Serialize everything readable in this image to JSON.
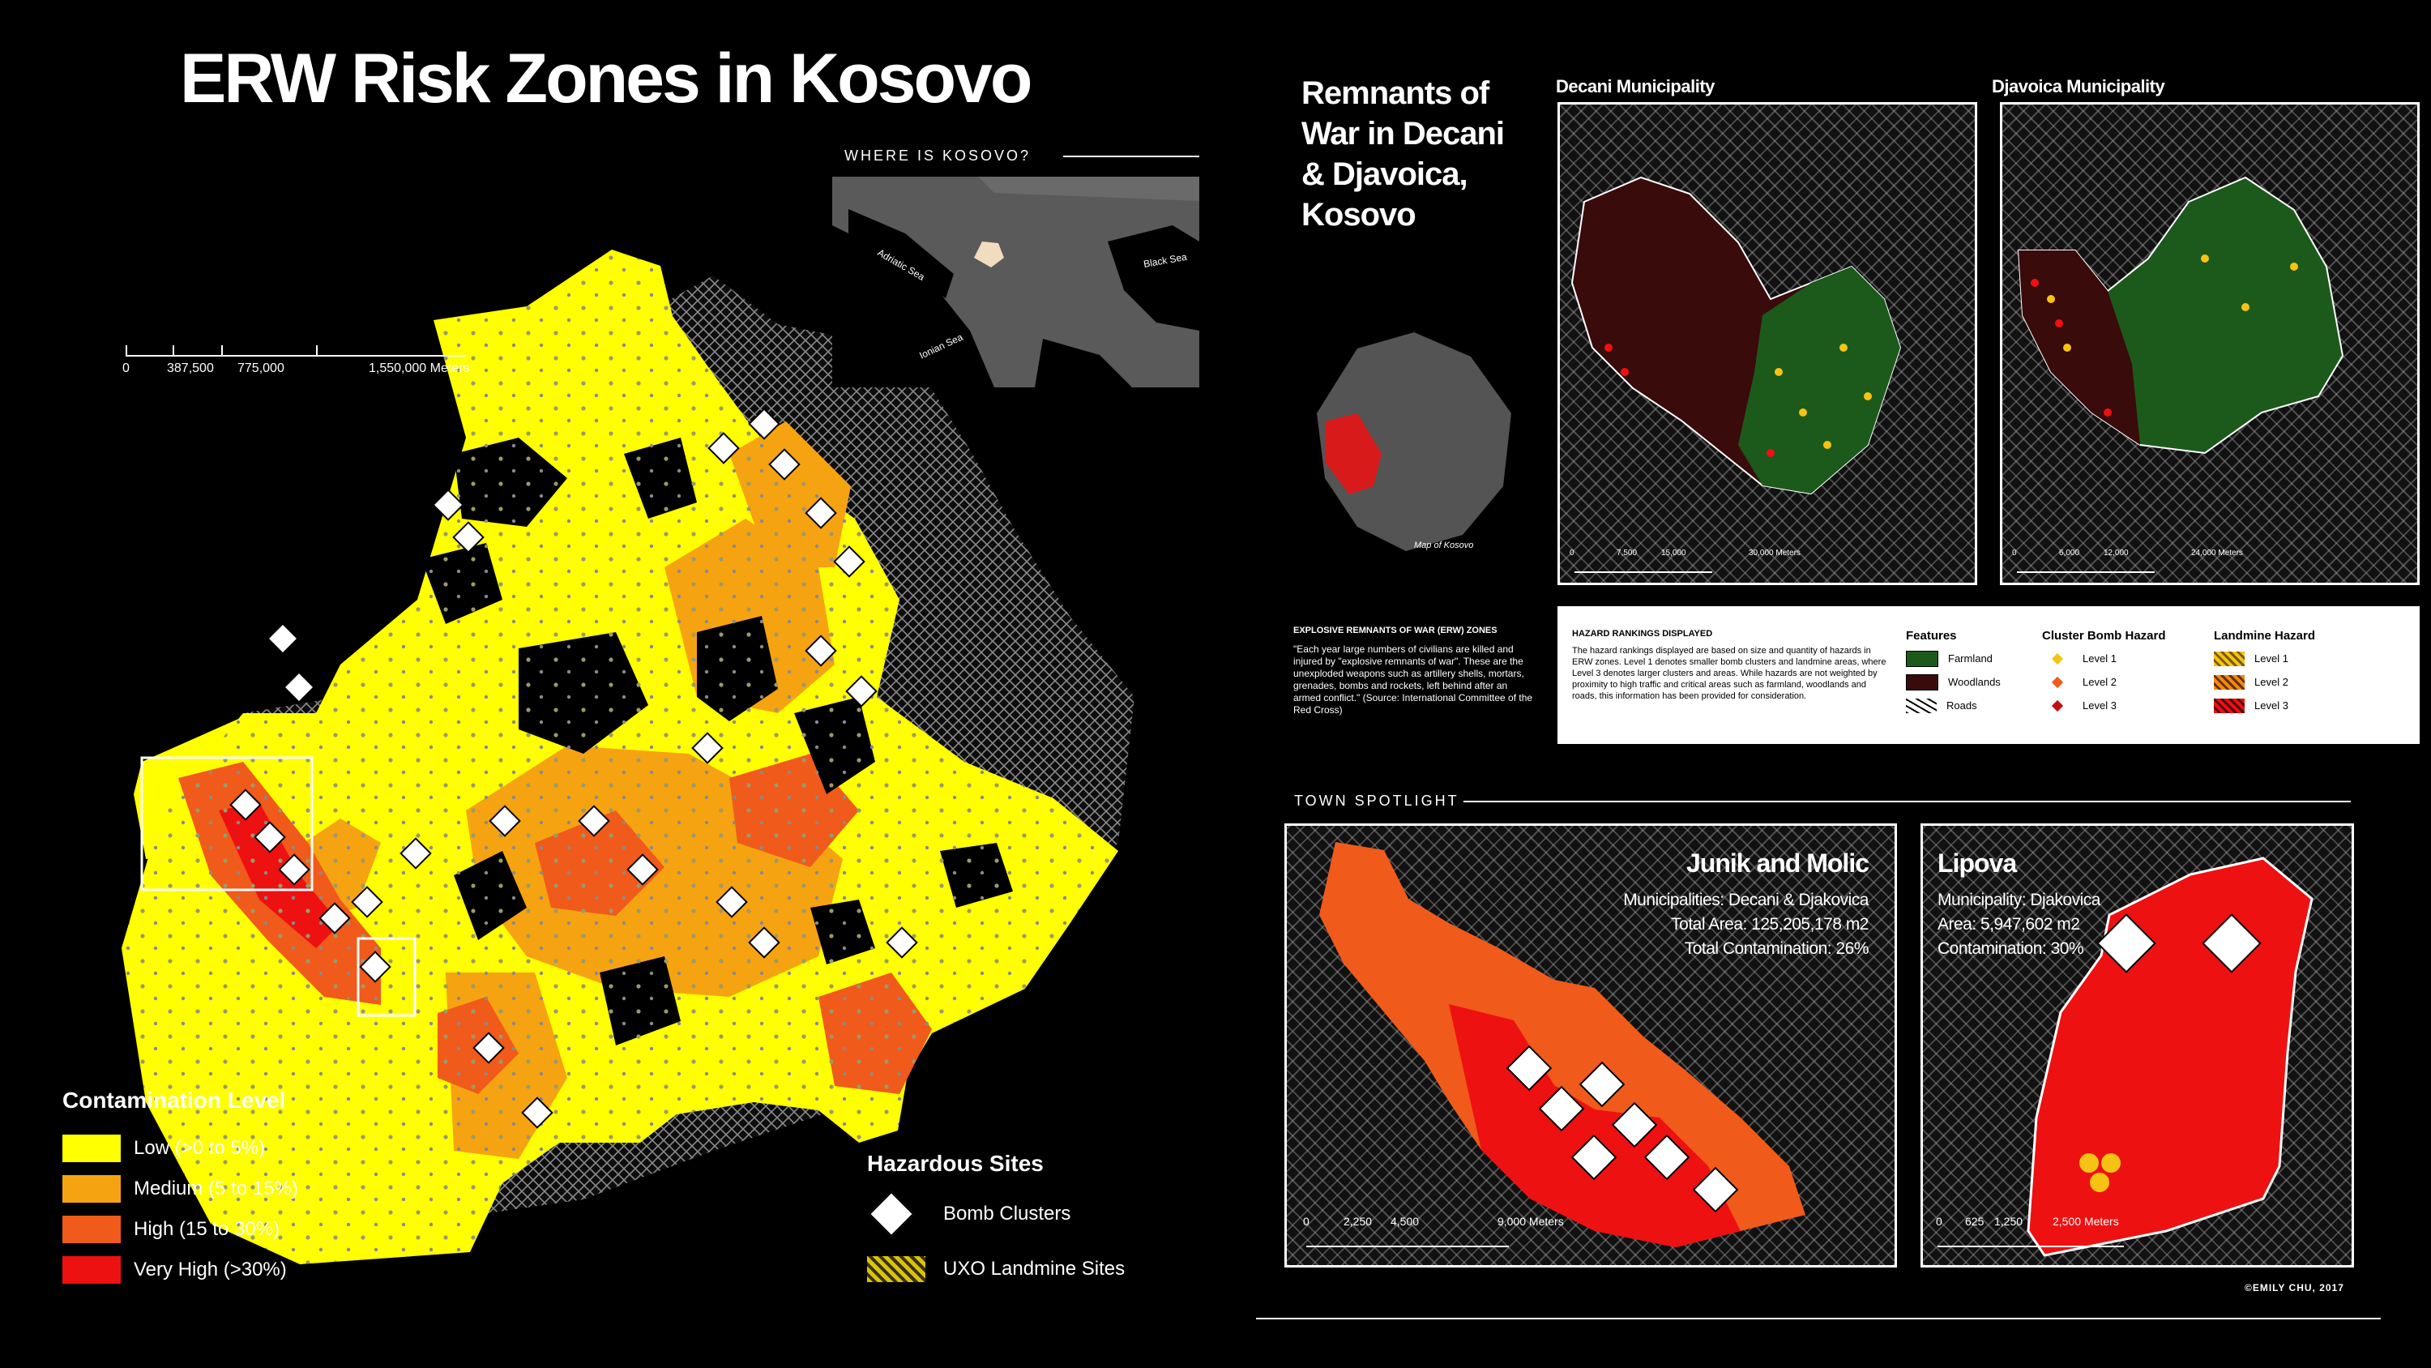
{
  "title": "ERW Risk Zones in Kosovo",
  "inset": {
    "label": "WHERE IS KOSOVO?",
    "labels": [
      "Adriatic Sea",
      "Black Sea",
      "Ionian Sea"
    ]
  },
  "main_scale": {
    "ticks": [
      "0",
      "387,500",
      "775,000",
      "1,550,000 Meters"
    ]
  },
  "contamination_legend": {
    "title": "Contamination Level",
    "items": [
      {
        "label": "Low (>0 to 5%)",
        "color": "#ffff00"
      },
      {
        "label": "Medium (5 to 15%)",
        "color": "#f6a312"
      },
      {
        "label": "High (15 to 30%)",
        "color": "#f05a1a"
      },
      {
        "label": "Very High (>30%)",
        "color": "#ee1111"
      }
    ]
  },
  "hazard_legend": {
    "title": "Hazardous Sites",
    "bomb_label": "Bomb Clusters",
    "landmine_label": "UXO Landmine Sites"
  },
  "remnants": {
    "title": "Remnants of War in Decani & Djavoica, Kosovo",
    "map_label": "Map of Kosovo"
  },
  "decani": {
    "title": "Decani Municipality",
    "scale": [
      "0",
      "7,500",
      "15,000",
      "30,000 Meters"
    ]
  },
  "djavoica": {
    "title": "Djavoica Municipality",
    "scale": [
      "0",
      "6,000",
      "12,000",
      "24,000 Meters"
    ]
  },
  "erw_info": {
    "title": "EXPLOSIVE REMNANTS OF WAR (ERW) ZONES",
    "text": "\"Each year large numbers of civilians are killed and injured by \"explosive remnants of war\". These are the unexploded weapons such as artillery shells, mortars, grenades, bombs and rockets, left behind after an armed conflict.\" (Source: International Committee of the Red Cross)"
  },
  "hazard_rankings": {
    "title": "HAZARD RANKINGS DISPLAYED",
    "text": "The hazard rankings displayed are based on size and quantity of hazards in ERW zones. Level 1 denotes smaller bomb clusters and landmine areas, where Level 3 denotes larger clusters and areas. While hazards are not weighted by proximity to high traffic and critical areas such as farmland, woodlands and roads, this information has been provided for consideration.",
    "features_title": "Features",
    "features": [
      "Farmland",
      "Woodlands",
      "Roads"
    ],
    "cluster_title": "Cluster Bomb Hazard",
    "cluster_levels": [
      "Level 1",
      "Level 2",
      "Level 3"
    ],
    "landmine_title": "Landmine Hazard",
    "landmine_levels": [
      "Level 1",
      "Level 2",
      "Level 3"
    ]
  },
  "town_spotlight": {
    "label": "TOWN SPOTLIGHT",
    "junik": {
      "title": "Junik and Molic",
      "lines": [
        "Municipalities: Decani & Djakovica",
        "Total Area: 125,205,178 m2",
        "Total Contamination: 26%"
      ],
      "scale": [
        "0",
        "2,250",
        "4,500",
        "9,000 Meters"
      ]
    },
    "lipova": {
      "title": "Lipova",
      "lines": [
        "Municipality: Djakovica",
        "Area: 5,947,602 m2",
        "Contamination: 30%"
      ],
      "scale": [
        "0",
        "625",
        "1,250",
        "2,500 Meters"
      ]
    }
  },
  "credit": "©EMILY CHU, 2017"
}
